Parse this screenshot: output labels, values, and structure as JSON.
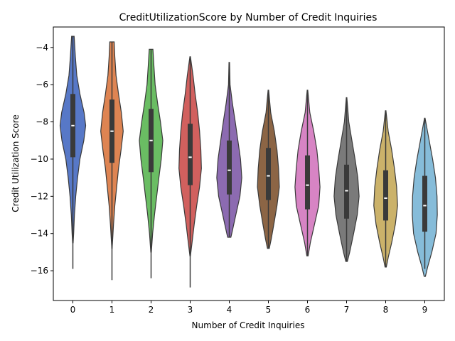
{
  "chart_data": {
    "type": "violin",
    "title": "CreditUtilizationScore by Number of Credit Inquiries",
    "xlabel": "Number of Credit Inquiries",
    "ylabel": "Credit Utilization Score",
    "ylim": [
      -17.6,
      -2.9
    ],
    "yticks": [
      -4,
      -6,
      -8,
      -10,
      -12,
      -14,
      -16
    ],
    "ytick_labels": [
      "−4",
      "−6",
      "−8",
      "−10",
      "−12",
      "−14",
      "−16"
    ],
    "categories": [
      "0",
      "1",
      "2",
      "3",
      "4",
      "5",
      "6",
      "7",
      "8",
      "9"
    ],
    "grid": false,
    "legend": "none",
    "violins": [
      {
        "category": "0",
        "color": "#5778c7",
        "min": -15.9,
        "q1": -9.9,
        "median": -8.2,
        "q3": -6.5,
        "max": -3.4,
        "density_top": -3.4,
        "density_bottom": -14.5,
        "profile": [
          [
            -3.4,
            0.08
          ],
          [
            -4.5,
            0.16
          ],
          [
            -5.5,
            0.25
          ],
          [
            -6.5,
            0.45
          ],
          [
            -7.5,
            0.72
          ],
          [
            -8.2,
            0.82
          ],
          [
            -9.0,
            0.7
          ],
          [
            -10.0,
            0.45
          ],
          [
            -11.0,
            0.3
          ],
          [
            -12.0,
            0.18
          ],
          [
            -13.0,
            0.1
          ],
          [
            -14.0,
            0.05
          ],
          [
            -14.5,
            0.02
          ]
        ]
      },
      {
        "category": "1",
        "color": "#de8452",
        "min": -16.5,
        "q1": -10.2,
        "median": -8.5,
        "q3": -6.8,
        "max": -3.7,
        "density_top": -3.7,
        "density_bottom": -14.8,
        "profile": [
          [
            -3.7,
            0.14
          ],
          [
            -4.5,
            0.18
          ],
          [
            -5.5,
            0.26
          ],
          [
            -6.5,
            0.42
          ],
          [
            -7.5,
            0.6
          ],
          [
            -8.5,
            0.72
          ],
          [
            -9.5,
            0.58
          ],
          [
            -10.5,
            0.42
          ],
          [
            -11.5,
            0.3
          ],
          [
            -12.5,
            0.18
          ],
          [
            -13.5,
            0.1
          ],
          [
            -14.5,
            0.03
          ],
          [
            -14.8,
            0.01
          ]
        ]
      },
      {
        "category": "2",
        "color": "#6abd63",
        "min": -16.4,
        "q1": -10.7,
        "median": -9.0,
        "q3": -7.3,
        "max": -4.1,
        "density_top": -4.1,
        "density_bottom": -15.0,
        "profile": [
          [
            -4.1,
            0.12
          ],
          [
            -5.0,
            0.18
          ],
          [
            -6.0,
            0.26
          ],
          [
            -7.0,
            0.42
          ],
          [
            -8.0,
            0.6
          ],
          [
            -9.0,
            0.75
          ],
          [
            -10.0,
            0.65
          ],
          [
            -11.0,
            0.5
          ],
          [
            -12.0,
            0.36
          ],
          [
            -13.0,
            0.22
          ],
          [
            -14.0,
            0.1
          ],
          [
            -15.0,
            0.02
          ]
        ]
      },
      {
        "category": "3",
        "color": "#d1605e",
        "min": -16.9,
        "q1": -11.4,
        "median": -9.9,
        "q3": -8.1,
        "max": -4.5,
        "density_top": -4.5,
        "density_bottom": -15.2,
        "profile": [
          [
            -4.5,
            0.02
          ],
          [
            -5.5,
            0.18
          ],
          [
            -6.5,
            0.32
          ],
          [
            -7.5,
            0.48
          ],
          [
            -8.5,
            0.6
          ],
          [
            -9.5,
            0.68
          ],
          [
            -10.5,
            0.72
          ],
          [
            -11.5,
            0.6
          ],
          [
            -12.5,
            0.42
          ],
          [
            -13.5,
            0.26
          ],
          [
            -14.5,
            0.12
          ],
          [
            -15.2,
            0.02
          ]
        ]
      },
      {
        "category": "4",
        "color": "#8c6bb1",
        "min": -14.2,
        "q1": -11.9,
        "median": -10.6,
        "q3": -9.0,
        "max": -4.8,
        "density_top": -4.8,
        "density_bottom": -14.2,
        "profile": [
          [
            -4.8,
            0.02
          ],
          [
            -6.0,
            0.05
          ],
          [
            -7.0,
            0.2
          ],
          [
            -8.0,
            0.38
          ],
          [
            -9.0,
            0.55
          ],
          [
            -10.0,
            0.72
          ],
          [
            -11.0,
            0.8
          ],
          [
            -12.0,
            0.68
          ],
          [
            -13.0,
            0.42
          ],
          [
            -14.0,
            0.16
          ],
          [
            -14.2,
            0.1
          ]
        ]
      },
      {
        "category": "5",
        "color": "#8c6545",
        "min": -14.8,
        "q1": -12.2,
        "median": -10.9,
        "q3": -9.4,
        "max": -6.3,
        "density_top": -6.3,
        "density_bottom": -14.8,
        "profile": [
          [
            -6.3,
            0.02
          ],
          [
            -7.5,
            0.15
          ],
          [
            -8.5,
            0.38
          ],
          [
            -9.5,
            0.55
          ],
          [
            -10.5,
            0.65
          ],
          [
            -11.5,
            0.7
          ],
          [
            -12.5,
            0.55
          ],
          [
            -13.5,
            0.35
          ],
          [
            -14.3,
            0.18
          ],
          [
            -14.8,
            0.06
          ]
        ]
      },
      {
        "category": "6",
        "color": "#d784c4",
        "min": -15.2,
        "q1": -12.7,
        "median": -11.4,
        "q3": -9.8,
        "max": -6.3,
        "density_top": -6.3,
        "density_bottom": -15.2,
        "profile": [
          [
            -6.3,
            0.02
          ],
          [
            -7.5,
            0.15
          ],
          [
            -8.5,
            0.4
          ],
          [
            -9.5,
            0.6
          ],
          [
            -10.5,
            0.72
          ],
          [
            -11.5,
            0.8
          ],
          [
            -12.5,
            0.72
          ],
          [
            -13.5,
            0.45
          ],
          [
            -14.5,
            0.18
          ],
          [
            -15.2,
            0.04
          ]
        ]
      },
      {
        "category": "7",
        "color": "#7a7a7a",
        "min": -15.5,
        "q1": -13.2,
        "median": -11.7,
        "q3": -10.3,
        "max": -6.7,
        "density_top": -6.7,
        "density_bottom": -15.5,
        "profile": [
          [
            -6.7,
            0.02
          ],
          [
            -8.0,
            0.14
          ],
          [
            -9.0,
            0.34
          ],
          [
            -10.0,
            0.54
          ],
          [
            -11.0,
            0.72
          ],
          [
            -12.0,
            0.8
          ],
          [
            -13.0,
            0.68
          ],
          [
            -14.0,
            0.45
          ],
          [
            -15.0,
            0.2
          ],
          [
            -15.5,
            0.05
          ]
        ]
      },
      {
        "category": "8",
        "color": "#cbb26a",
        "min": -15.8,
        "q1": -13.3,
        "median": -12.1,
        "q3": -10.6,
        "max": -7.4,
        "density_top": -7.4,
        "density_bottom": -15.8,
        "profile": [
          [
            -7.4,
            0.02
          ],
          [
            -8.5,
            0.16
          ],
          [
            -9.5,
            0.38
          ],
          [
            -10.5,
            0.56
          ],
          [
            -11.5,
            0.7
          ],
          [
            -12.5,
            0.76
          ],
          [
            -13.5,
            0.62
          ],
          [
            -14.5,
            0.38
          ],
          [
            -15.3,
            0.16
          ],
          [
            -15.8,
            0.04
          ]
        ]
      },
      {
        "category": "9",
        "color": "#86bcd9",
        "min": -15.9,
        "q1": -13.9,
        "median": -12.5,
        "q3": -10.9,
        "max": -7.8,
        "density_top": -7.8,
        "density_bottom": -16.3,
        "profile": [
          [
            -7.8,
            0.02
          ],
          [
            -9.0,
            0.28
          ],
          [
            -10.0,
            0.5
          ],
          [
            -11.0,
            0.68
          ],
          [
            -12.0,
            0.78
          ],
          [
            -13.0,
            0.8
          ],
          [
            -14.0,
            0.72
          ],
          [
            -15.0,
            0.45
          ],
          [
            -15.8,
            0.18
          ],
          [
            -16.3,
            0.04
          ]
        ]
      }
    ]
  }
}
